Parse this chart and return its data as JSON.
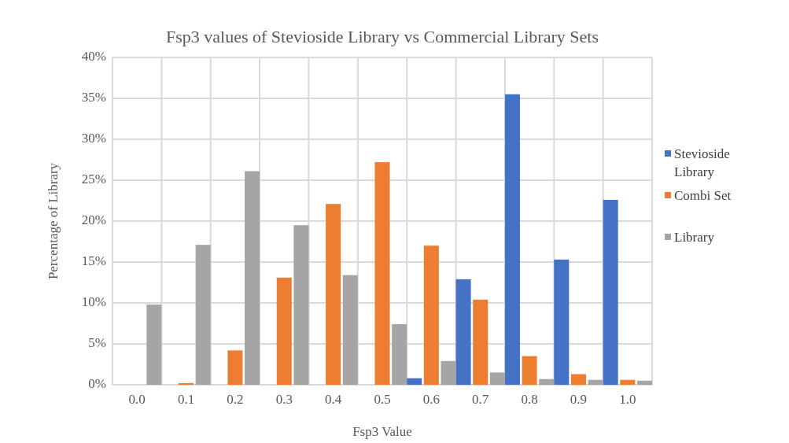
{
  "chart_data": {
    "type": "bar",
    "title": "Fsp3 values of Stevioside Library vs Commercial Library Sets",
    "xlabel": "Fsp3 Value",
    "ylabel": "Percentage of Library",
    "categories": [
      "0.0",
      "0.1",
      "0.2",
      "0.3",
      "0.4",
      "0.5",
      "0.6",
      "0.7",
      "0.8",
      "0.9",
      "1.0"
    ],
    "series": [
      {
        "name": "Stevioside Library",
        "color": "#4472c4",
        "values": [
          0,
          0,
          0,
          0,
          0,
          0,
          0.8,
          12.9,
          35.5,
          15.3,
          22.6
        ]
      },
      {
        "name": "Combi Set",
        "color": "#ed7d31",
        "values": [
          0,
          0.2,
          4.2,
          13.1,
          22.1,
          27.2,
          17.0,
          10.4,
          3.5,
          1.3,
          0.6
        ]
      },
      {
        "name": "Library",
        "color": "#a5a5a5",
        "values": [
          9.8,
          17.1,
          26.1,
          19.5,
          13.4,
          7.4,
          2.9,
          1.5,
          0.7,
          0.6,
          0.5
        ]
      }
    ],
    "ylim": [
      0,
      40
    ],
    "yticks": [
      {
        "value": 0,
        "label": "0%"
      },
      {
        "value": 5,
        "label": "5%"
      },
      {
        "value": 10,
        "label": "10%"
      },
      {
        "value": 15,
        "label": "15%"
      },
      {
        "value": 20,
        "label": "20%"
      },
      {
        "value": 25,
        "label": "25%"
      },
      {
        "value": 30,
        "label": "30%"
      },
      {
        "value": 35,
        "label": "35%"
      },
      {
        "value": 40,
        "label": "40%"
      }
    ],
    "grid": true,
    "legend": "right"
  }
}
